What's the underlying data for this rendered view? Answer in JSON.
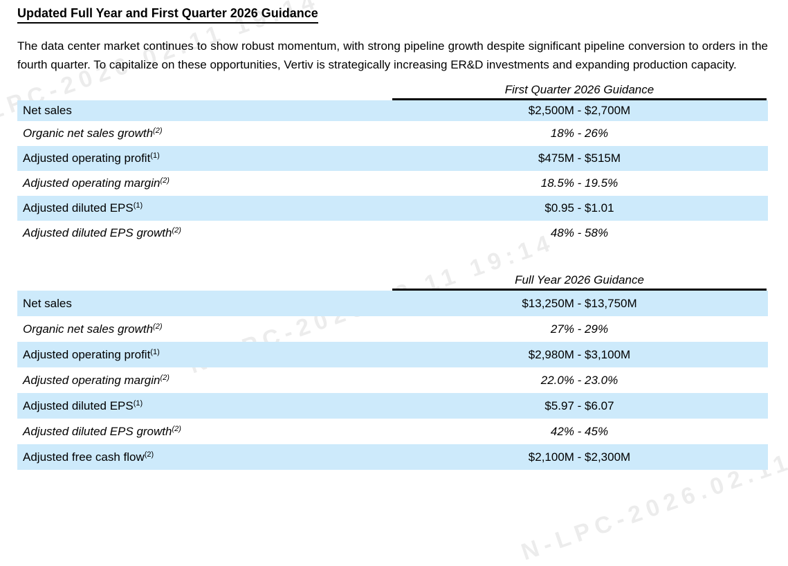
{
  "document": {
    "title": "Updated Full Year and First Quarter 2026 Guidance",
    "intro": "The data center market continues to show robust momentum, with strong pipeline growth despite significant pipeline conversion to orders in the fourth quarter. To capitalize on these opportunities, Vertiv is strategically increasing ER&D investments and expanding production capacity."
  },
  "tables": [
    {
      "header": "First Quarter 2026 Guidance",
      "rows": [
        {
          "label": "Net sales",
          "sup": "",
          "value": "$2,500M - $2,700M"
        },
        {
          "label": "Organic net sales growth",
          "sup": "(2)",
          "value": "18% - 26%"
        },
        {
          "label": "Adjusted operating profit",
          "sup": "(1)",
          "value": "$475M - $515M"
        },
        {
          "label": "Adjusted operating margin",
          "sup": "(2)",
          "value": "18.5% - 19.5%"
        },
        {
          "label": "Adjusted diluted EPS",
          "sup": "(1)",
          "value": "$0.95 - $1.01"
        },
        {
          "label": "Adjusted diluted EPS growth",
          "sup": "(2)",
          "value": "48% - 58%"
        }
      ]
    },
    {
      "header": "Full Year 2026 Guidance",
      "rows": [
        {
          "label": "Net sales",
          "sup": "",
          "value": "$13,250M - $13,750M"
        },
        {
          "label": "Organic net sales growth",
          "sup": "(2)",
          "value": "27% - 29%"
        },
        {
          "label": "Adjusted operating profit",
          "sup": "(1)",
          "value": "$2,980M - $3,100M"
        },
        {
          "label": "Adjusted operating margin",
          "sup": "(2)",
          "value": "22.0% - 23.0%"
        },
        {
          "label": "Adjusted diluted EPS",
          "sup": "(1)",
          "value": "$5.97 - $6.07"
        },
        {
          "label": "Adjusted diluted EPS growth",
          "sup": "(2)",
          "value": "42% - 45%"
        },
        {
          "label": "Adjusted free cash flow",
          "sup": "(2)",
          "value": "$2,100M - $2,300M"
        }
      ]
    }
  ],
  "watermark": {
    "text": "N-LPC-2026.02.11 19:14"
  },
  "colors": {
    "row_shade": "#cdeafb",
    "text": "#000000",
    "rule": "#000000"
  }
}
